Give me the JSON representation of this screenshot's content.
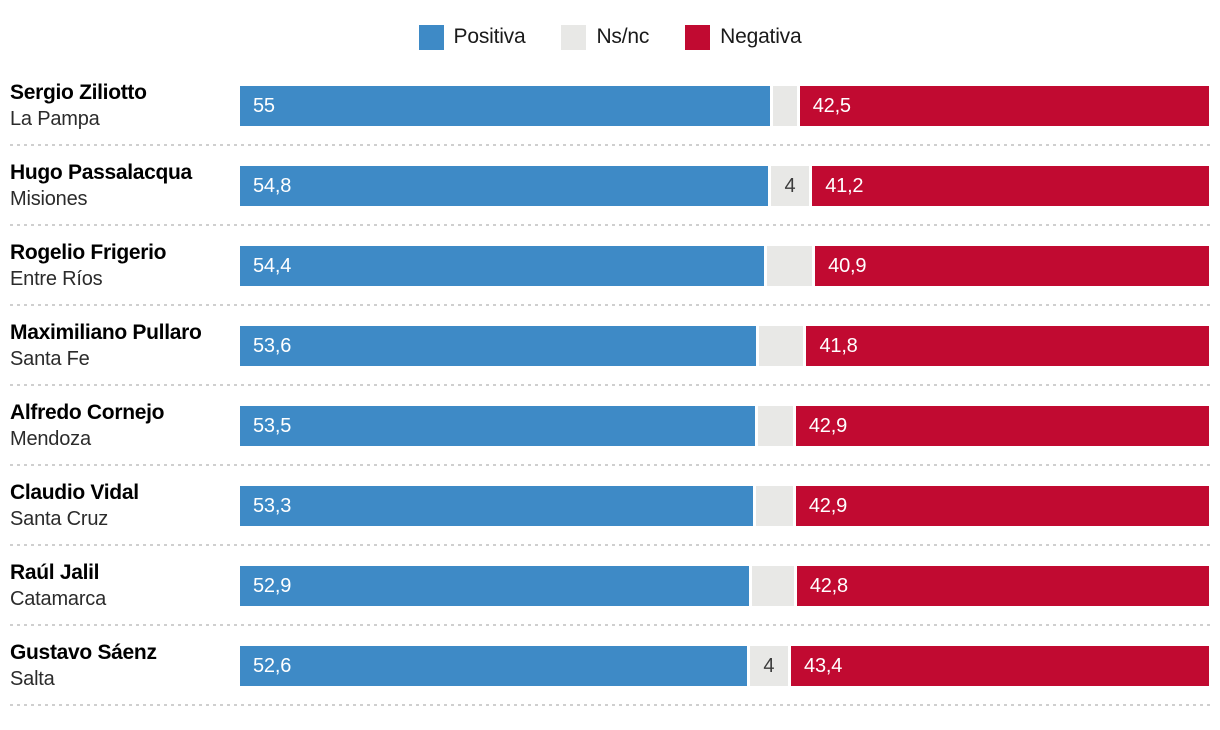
{
  "legend": {
    "items": [
      {
        "label": "Positiva",
        "color": "#3e8ac6"
      },
      {
        "label": "Ns/nc",
        "color": "#e8e8e6"
      },
      {
        "label": "Negativa",
        "color": "#c10a31"
      }
    ]
  },
  "colors": {
    "positiva": "#3e8ac6",
    "nsnc": "#e8e8e6",
    "negativa": "#c10a31",
    "bar_label_light": "#ffffff",
    "bar_label_dark": "#3c3c3c",
    "separator": "#cfcfcf"
  },
  "chart_data": {
    "type": "bar",
    "orientation": "horizontal",
    "stacked": true,
    "unit": "percent",
    "legend_position": "top",
    "series_names": [
      "Positiva",
      "Ns/nc",
      "Negativa"
    ],
    "x_range": [
      0,
      100
    ],
    "rows": [
      {
        "name": "Sergio Ziliotto",
        "region": "La Pampa",
        "positiva": 55,
        "positiva_label": "55",
        "nsnc": 2.5,
        "nsnc_label": "",
        "negativa": 42.5,
        "negativa_label": "42,5"
      },
      {
        "name": "Hugo Passalacqua",
        "region": "Misiones",
        "positiva": 54.8,
        "positiva_label": "54,8",
        "nsnc": 4,
        "nsnc_label": "4",
        "negativa": 41.2,
        "negativa_label": "41,2"
      },
      {
        "name": "Rogelio Frigerio",
        "region": "Entre Ríos",
        "positiva": 54.4,
        "positiva_label": "54,4",
        "nsnc": 4.7,
        "nsnc_label": "",
        "negativa": 40.9,
        "negativa_label": "40,9"
      },
      {
        "name": "Maximiliano Pullaro",
        "region": "Santa Fe",
        "positiva": 53.6,
        "positiva_label": "53,6",
        "nsnc": 4.6,
        "nsnc_label": "",
        "negativa": 41.8,
        "negativa_label": "41,8"
      },
      {
        "name": "Alfredo Cornejo",
        "region": "Mendoza",
        "positiva": 53.5,
        "positiva_label": "53,5",
        "nsnc": 3.6,
        "nsnc_label": "",
        "negativa": 42.9,
        "negativa_label": "42,9"
      },
      {
        "name": "Claudio Vidal",
        "region": "Santa Cruz",
        "positiva": 53.3,
        "positiva_label": "53,3",
        "nsnc": 3.8,
        "nsnc_label": "",
        "negativa": 42.9,
        "negativa_label": "42,9"
      },
      {
        "name": "Raúl Jalil",
        "region": "Catamarca",
        "positiva": 52.9,
        "positiva_label": "52,9",
        "nsnc": 4.3,
        "nsnc_label": "",
        "negativa": 42.8,
        "negativa_label": "42,8"
      },
      {
        "name": "Gustavo Sáenz",
        "region": "Salta",
        "positiva": 52.6,
        "positiva_label": "52,6",
        "nsnc": 4,
        "nsnc_label": "4",
        "negativa": 43.4,
        "negativa_label": "43,4"
      }
    ]
  }
}
